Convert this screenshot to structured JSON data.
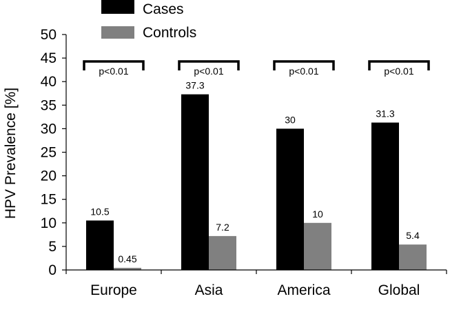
{
  "chart_data": {
    "type": "bar",
    "categories": [
      "Europe",
      "Asia",
      "America",
      "Global"
    ],
    "series": [
      {
        "name": "Cases",
        "values": [
          10.5,
          37.3,
          30,
          31.3
        ],
        "labels": [
          "10.5",
          "37.3",
          "30",
          "31.3"
        ],
        "color": "#000000"
      },
      {
        "name": "Controls",
        "values": [
          0.45,
          7.2,
          10,
          5.4
        ],
        "labels": [
          "0.45",
          "7.2",
          "10",
          "5.4"
        ],
        "color": "#808080"
      }
    ],
    "ylabel": "HPV Prevalence [%]",
    "xlabel": "",
    "ylim": [
      0,
      50
    ],
    "yticks": [
      "0",
      "5",
      "10",
      "15",
      "20",
      "25",
      "30",
      "35",
      "40",
      "45",
      "50"
    ],
    "annotations": [
      "p<0.01",
      "p<0.01",
      "p<0.01",
      "p<0.01"
    ],
    "legend_position": "top-left",
    "grid": false
  }
}
